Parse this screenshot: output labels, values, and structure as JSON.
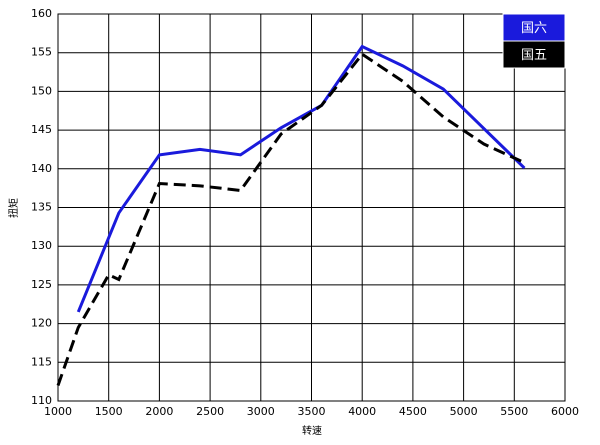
{
  "chart_data": {
    "type": "line",
    "xlabel": "转速",
    "ylabel": "扭矩",
    "xlim": [
      1000,
      6000
    ],
    "xticks": [
      1000,
      1500,
      2000,
      2500,
      3000,
      3500,
      4000,
      4500,
      5000,
      5500,
      6000
    ],
    "ylim": [
      110,
      160
    ],
    "yticks": [
      110,
      115,
      120,
      125,
      130,
      135,
      140,
      145,
      150,
      155,
      160
    ],
    "grid": true,
    "legend": "top-right",
    "series": [
      {
        "name": "国六",
        "color": "#1a1adc",
        "dash": false,
        "x": [
          1200,
          1600,
          2000,
          2400,
          2800,
          3200,
          3600,
          4000,
          4400,
          4800,
          5200,
          5600
        ],
        "values": [
          121.5,
          134.3,
          141.8,
          142.5,
          141.8,
          145.3,
          148.2,
          155.8,
          153.3,
          150.3,
          145.2,
          140.1
        ]
      },
      {
        "name": "国五",
        "color": "#000000",
        "dash": true,
        "x": [
          1000,
          1200,
          1500,
          1600,
          2000,
          2400,
          2800,
          3200,
          3600,
          4000,
          4400,
          4800,
          5200,
          5600
        ],
        "values": [
          112,
          119.5,
          126.3,
          125.7,
          138.1,
          137.8,
          137.2,
          144.5,
          148.2,
          154.8,
          151.3,
          146.7,
          143.2,
          140.8
        ]
      }
    ]
  }
}
